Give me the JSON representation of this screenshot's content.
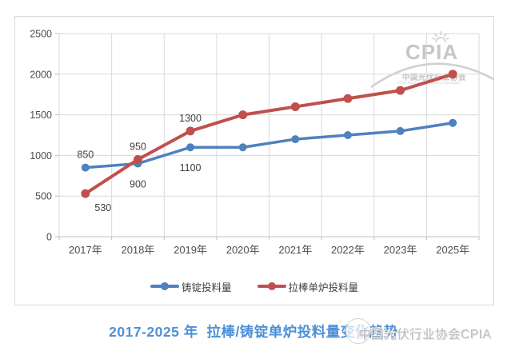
{
  "logo": {
    "name": "CPIA",
    "org_cn": "中国光伏行业协会",
    "org_en": "China Photovoltaic Industry Association"
  },
  "footer": {
    "title": "2017-2025 年  拉棒/铸锭单炉投料量变化趋势",
    "watermark_text": "中国光伏行业协会CPIA"
  },
  "colors": {
    "series_blue": "#4F81BD",
    "series_red": "#C0504D",
    "grid": "#D9D9D9",
    "axis": "#BFBFBF",
    "tick_text": "#4d4d4d",
    "data_label_text": "#3f3f3f",
    "title_blue": "#4E90D8",
    "watermark_gray": "#C6C6C6"
  },
  "chart_data": {
    "type": "line",
    "title": "2017-2025 年  拉棒/铸锭单炉投料量变化趋势",
    "categories": [
      "2017年",
      "2018年",
      "2019年",
      "2020年",
      "2021年",
      "2022年",
      "2023年",
      "2025年"
    ],
    "series": [
      {
        "name": "铸锭投料量",
        "color": "#4F81BD",
        "values": [
          850,
          900,
          1100,
          1100,
          1200,
          1250,
          1300,
          1400
        ]
      },
      {
        "name": "拉棒单炉投料量",
        "color": "#C0504D",
        "values": [
          530,
          950,
          1300,
          1500,
          1600,
          1700,
          1800,
          2000
        ]
      }
    ],
    "point_labels": [
      {
        "series": 0,
        "index": 0,
        "text": "850",
        "placement": "above"
      },
      {
        "series": 0,
        "index": 1,
        "text": "900",
        "placement": "below"
      },
      {
        "series": 0,
        "index": 2,
        "text": "1100",
        "placement": "below"
      },
      {
        "series": 1,
        "index": 0,
        "text": "530",
        "placement": "below-right"
      },
      {
        "series": 1,
        "index": 1,
        "text": "950",
        "placement": "above"
      },
      {
        "series": 1,
        "index": 2,
        "text": "1300",
        "placement": "above"
      }
    ],
    "xlabel": "",
    "ylabel": "",
    "ylim": [
      0,
      2500
    ],
    "y_ticks": [
      0,
      500,
      1000,
      1500,
      2000,
      2500
    ],
    "grid": true,
    "legend_position": "bottom"
  }
}
